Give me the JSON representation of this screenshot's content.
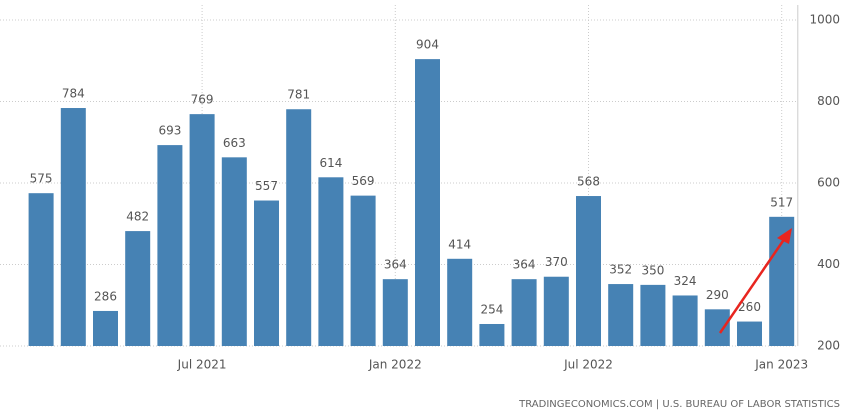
{
  "chart_data": {
    "type": "bar",
    "categories": [
      null,
      null,
      null,
      null,
      null,
      "Jul 2021",
      null,
      null,
      null,
      null,
      null,
      "Jan 2022",
      null,
      null,
      null,
      null,
      null,
      "Jul 2022",
      null,
      null,
      null,
      null,
      null,
      "Jan 2023"
    ],
    "values": [
      575,
      784,
      286,
      482,
      693,
      769,
      663,
      557,
      781,
      614,
      569,
      364,
      904,
      414,
      254,
      364,
      370,
      568,
      352,
      350,
      324,
      290,
      260,
      517
    ],
    "color": "#4682b4",
    "ylim": [
      200,
      1000
    ],
    "yticks": [
      200,
      400,
      600,
      800,
      1000
    ],
    "grid": true,
    "source": "TRADINGECONOMICS.COM | U.S. BUREAU OF LABOR STATISTICS"
  }
}
